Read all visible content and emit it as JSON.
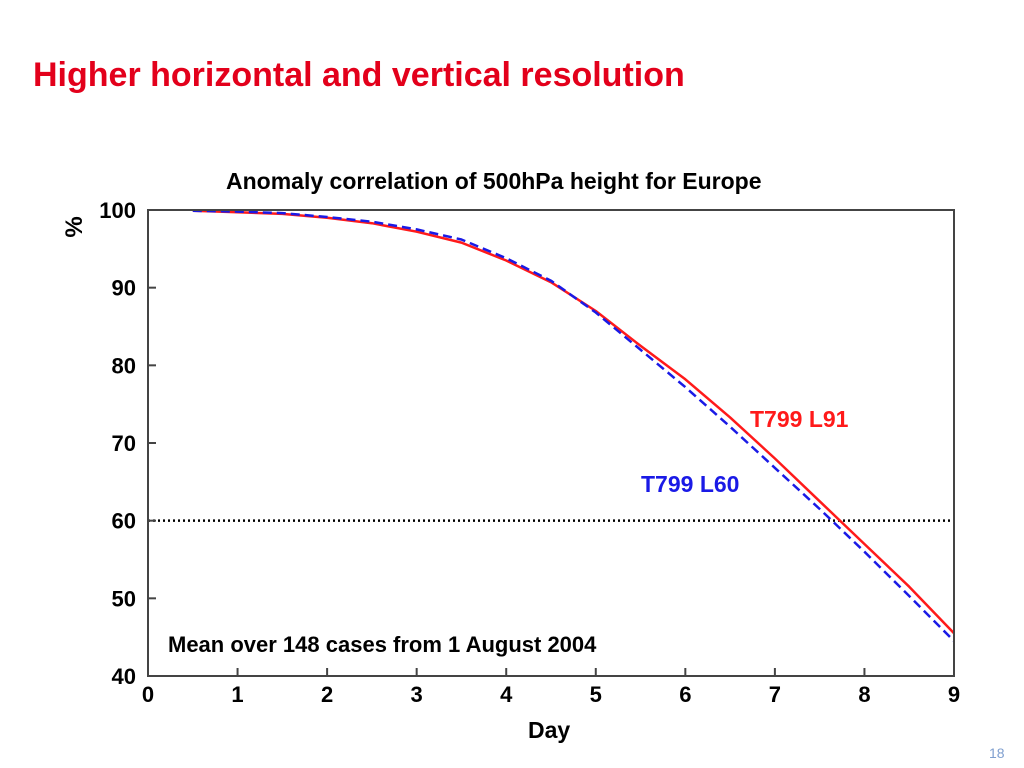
{
  "slide": {
    "title": "Higher horizontal and vertical resolution",
    "page_number": "18"
  },
  "colors": {
    "title": "#e3001b",
    "series_l91": "#ff1a1a",
    "series_l60": "#1a1ae6",
    "threshold": "#000000"
  },
  "chart_data": {
    "type": "line",
    "title": "Anomaly correlation of 500hPa height for Europe",
    "xlabel": "Day",
    "ylabel": "%",
    "xlim": [
      0,
      9
    ],
    "ylim": [
      40,
      100
    ],
    "x_ticks": [
      0,
      1,
      2,
      3,
      4,
      5,
      6,
      7,
      8,
      9
    ],
    "y_ticks": [
      40,
      50,
      60,
      70,
      80,
      90,
      100
    ],
    "grid": false,
    "series": [
      {
        "name": "T799 L91",
        "style": "solid",
        "x": [
          0.5,
          1,
          1.5,
          2,
          2.5,
          3,
          3.5,
          4,
          4.5,
          5,
          5.5,
          6,
          6.5,
          7,
          7.5,
          8,
          8.5,
          9
        ],
        "y": [
          99.9,
          99.7,
          99.5,
          99.0,
          98.3,
          97.2,
          95.8,
          93.5,
          90.7,
          87.0,
          82.5,
          78.2,
          73.3,
          68.0,
          62.5,
          57.0,
          51.5,
          45.5
        ]
      },
      {
        "name": "T799 L60",
        "style": "dashed",
        "x": [
          0.5,
          1,
          1.5,
          2,
          2.5,
          3,
          3.5,
          4,
          4.5,
          5,
          5.5,
          6,
          6.5,
          7,
          7.5,
          8,
          8.5,
          9
        ],
        "y": [
          99.9,
          99.8,
          99.6,
          99.1,
          98.5,
          97.5,
          96.2,
          93.8,
          90.9,
          86.8,
          82.0,
          77.2,
          72.1,
          66.8,
          61.5,
          56.0,
          50.3,
          44.5
        ]
      }
    ],
    "reference_line": {
      "y": 60,
      "style": "dotted"
    },
    "annotations": [
      {
        "text": "T799 L91",
        "series": "T799 L91"
      },
      {
        "text": "T799 L60",
        "series": "T799 L60"
      },
      {
        "text": "Mean over 148 cases from 1 August 2004"
      }
    ]
  }
}
